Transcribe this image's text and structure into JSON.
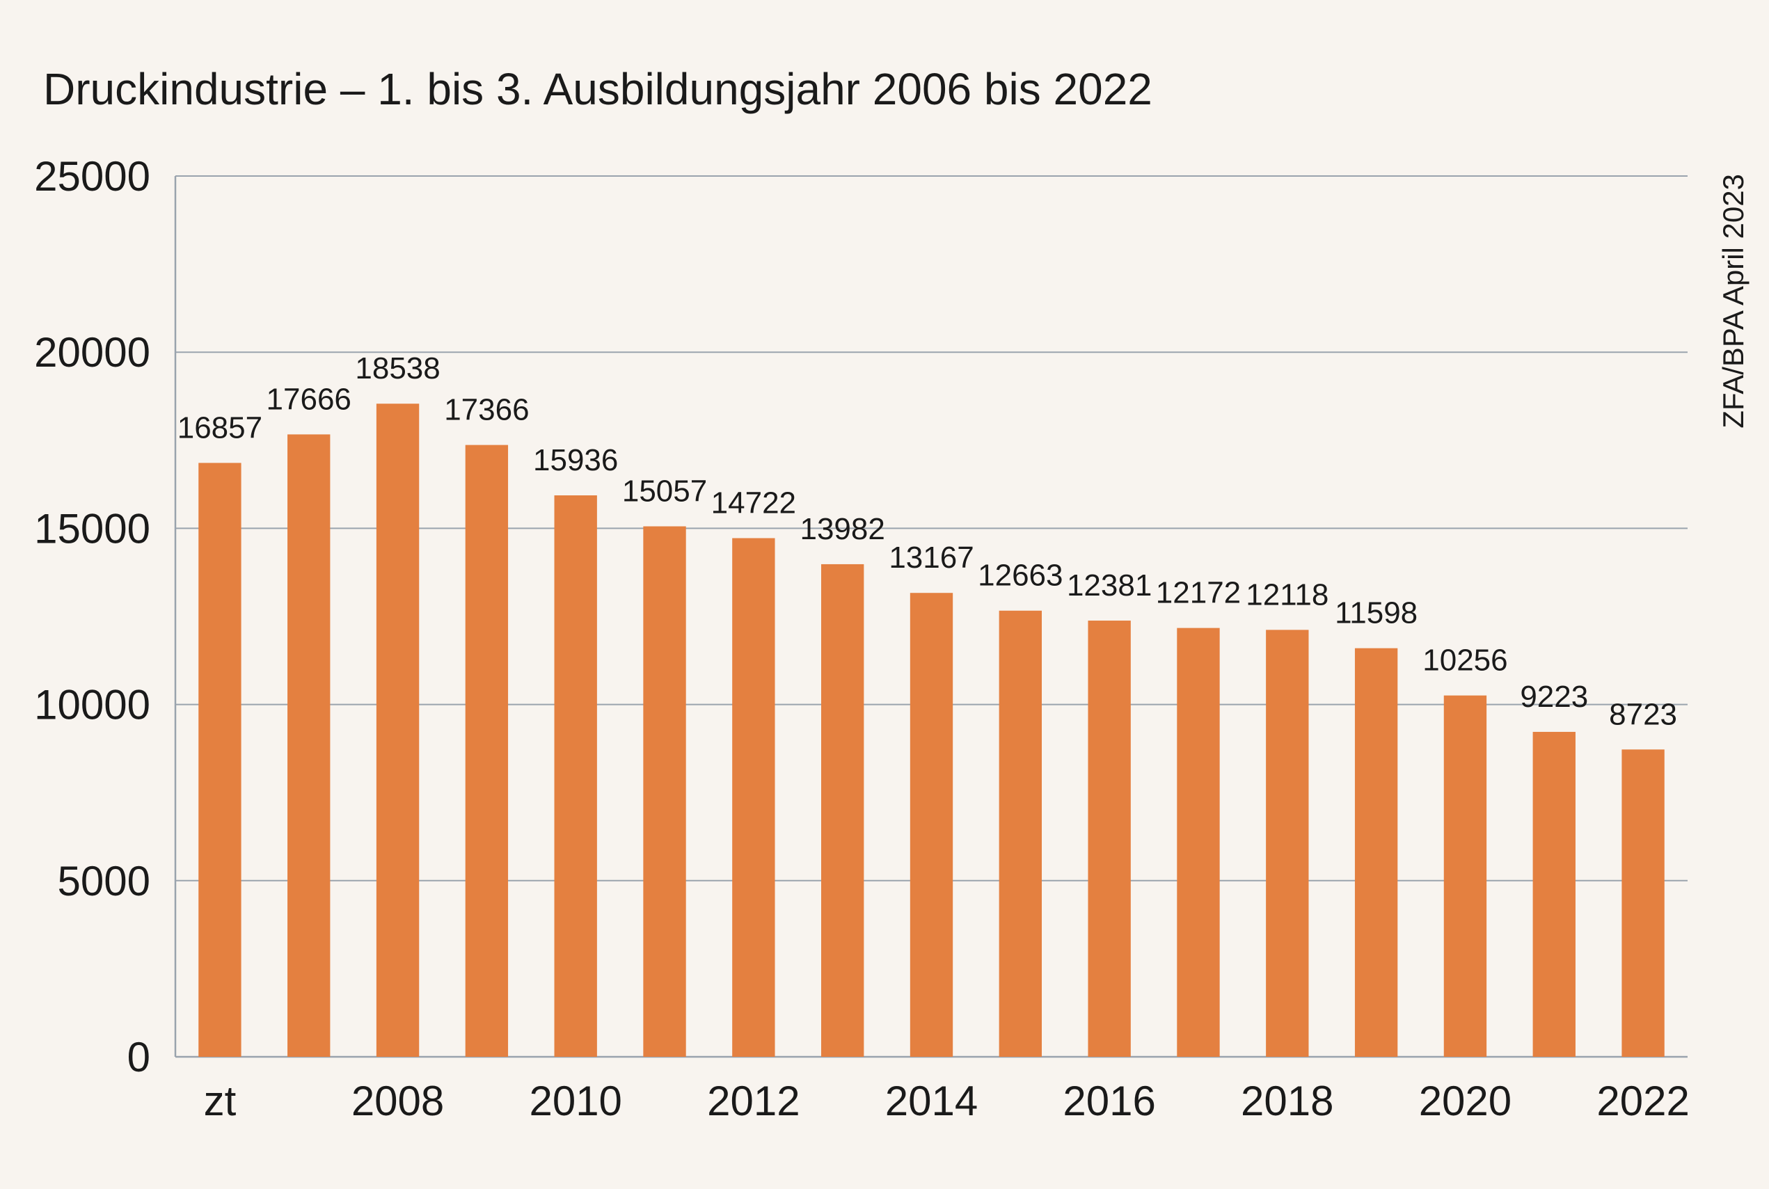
{
  "chart_data": {
    "type": "bar",
    "title": "Druckindustrie – 1. bis 3. Ausbildungsjahr 2006 bis 2022",
    "source": "ZFA/BPA April 2023",
    "categories": [
      "2006",
      "2007",
      "2008",
      "2009",
      "2010",
      "2011",
      "2012",
      "2013",
      "2014",
      "2015",
      "2016",
      "2017",
      "2018",
      "2019",
      "2020",
      "2021",
      "2022"
    ],
    "values": [
      16857,
      17666,
      18538,
      17366,
      15936,
      15057,
      14722,
      13982,
      13167,
      12663,
      12381,
      12172,
      12118,
      11598,
      10256,
      9223,
      8723
    ],
    "x_tick_labels": [
      {
        "category": "2006",
        "label": "zt"
      },
      {
        "category": "2008",
        "label": "2008"
      },
      {
        "category": "2010",
        "label": "2010"
      },
      {
        "category": "2012",
        "label": "2012"
      },
      {
        "category": "2014",
        "label": "2014"
      },
      {
        "category": "2016",
        "label": "2016"
      },
      {
        "category": "2018",
        "label": "2018"
      },
      {
        "category": "2020",
        "label": "2020"
      },
      {
        "category": "2022",
        "label": "2022"
      }
    ],
    "y_ticks": [
      0,
      5000,
      10000,
      15000,
      20000,
      25000
    ],
    "ylim": [
      0,
      25000
    ],
    "xlabel": "",
    "ylabel": "",
    "grid": true,
    "legend": "none",
    "colors": {
      "bar": "#e48040",
      "grid": "#9aa3ad",
      "background": "#f8f4ef"
    }
  }
}
